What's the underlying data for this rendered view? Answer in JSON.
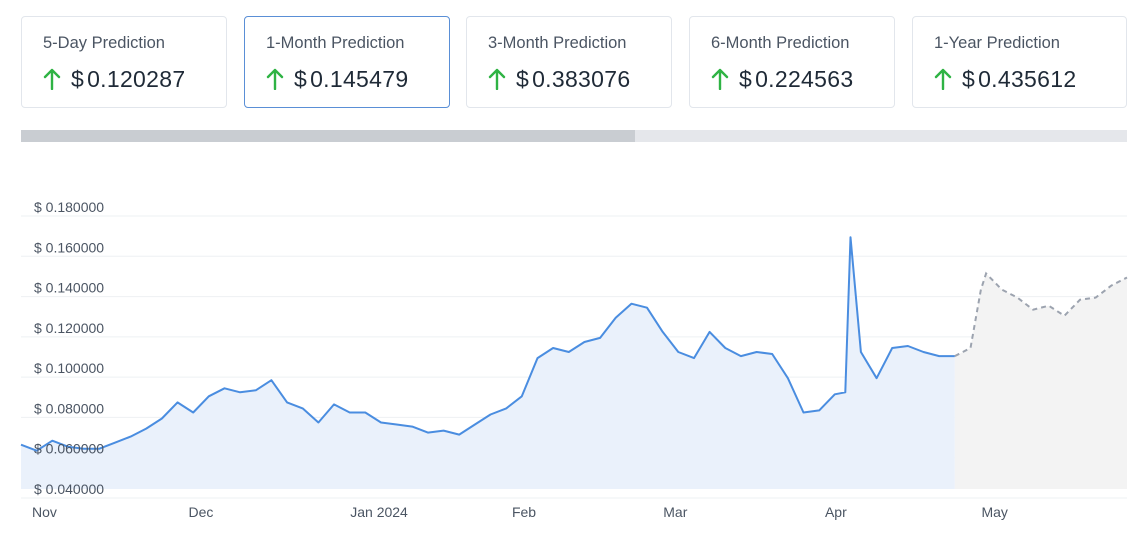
{
  "predictions": [
    {
      "label": "5-Day Prediction",
      "currency": "$",
      "value": "0.120287",
      "direction": "up-arrow-icon",
      "active": false
    },
    {
      "label": "1-Month Prediction",
      "currency": "$",
      "value": "0.145479",
      "direction": "up-arrow-icon",
      "active": true
    },
    {
      "label": "3-Month Prediction",
      "currency": "$",
      "value": "0.383076",
      "direction": "up-arrow-icon",
      "active": false
    },
    {
      "label": "6-Month Prediction",
      "currency": "$",
      "value": "0.224563",
      "direction": "up-arrow-icon",
      "active": false
    },
    {
      "label": "1-Year Prediction",
      "currency": "$",
      "value": "0.435612",
      "direction": "up-arrow-icon",
      "active": false
    }
  ],
  "colors": {
    "up_arrow": "#2fb344",
    "line": "#4a8de0",
    "area": "#eaf1fb",
    "forecast_line": "#9ca3af",
    "forecast_area": "#f3f3f3",
    "active_border": "#5a8fd6"
  },
  "chart_data": {
    "type": "line",
    "ylim": [
      0.04,
      0.18
    ],
    "ytick_labels": [
      "$ 0.180000",
      "$ 0.160000",
      "$ 0.140000",
      "$ 0.120000",
      "$ 0.100000",
      "$ 0.080000",
      "$ 0.060000",
      "$ 0.040000"
    ],
    "ytick_values": [
      0.18,
      0.16,
      0.14,
      0.12,
      0.1,
      0.08,
      0.06,
      0.04
    ],
    "xtick_labels": [
      "Nov",
      "Dec",
      "Jan 2024",
      "Feb",
      "Mar",
      "Apr",
      "May"
    ],
    "xtick_dates": [
      "2023-11-01",
      "2023-12-01",
      "2024-01-01",
      "2024-02-01",
      "2024-03-01",
      "2024-04-01",
      "2024-05-01"
    ],
    "xlim": [
      "2023-11-01",
      "2024-05-31"
    ],
    "grid": true,
    "series": [
      {
        "kind": "historical",
        "x": [
          "2023-11-01",
          "2023-11-04",
          "2023-11-07",
          "2023-11-10",
          "2023-11-13",
          "2023-11-16",
          "2023-11-19",
          "2023-11-22",
          "2023-11-25",
          "2023-11-28",
          "2023-12-01",
          "2023-12-04",
          "2023-12-07",
          "2023-12-10",
          "2023-12-13",
          "2023-12-16",
          "2023-12-19",
          "2023-12-22",
          "2023-12-25",
          "2023-12-28",
          "2023-12-31",
          "2024-01-03",
          "2024-01-06",
          "2024-01-09",
          "2024-01-12",
          "2024-01-15",
          "2024-01-18",
          "2024-01-21",
          "2024-01-24",
          "2024-01-27",
          "2024-01-30",
          "2024-02-02",
          "2024-02-05",
          "2024-02-08",
          "2024-02-11",
          "2024-02-14",
          "2024-02-17",
          "2024-02-20",
          "2024-02-23",
          "2024-02-26",
          "2024-02-29",
          "2024-03-03",
          "2024-03-06",
          "2024-03-09",
          "2024-03-12",
          "2024-03-15",
          "2024-03-18",
          "2024-03-21",
          "2024-03-24",
          "2024-03-27",
          "2024-03-30",
          "2024-04-02",
          "2024-04-05",
          "2024-04-07",
          "2024-04-08",
          "2024-04-10",
          "2024-04-13",
          "2024-04-16",
          "2024-04-19",
          "2024-04-22",
          "2024-04-25",
          "2024-04-28"
        ],
        "y": [
          0.062,
          0.059,
          0.064,
          0.061,
          0.06,
          0.06,
          0.063,
          0.066,
          0.07,
          0.075,
          0.083,
          0.078,
          0.086,
          0.09,
          0.088,
          0.089,
          0.094,
          0.083,
          0.08,
          0.073,
          0.082,
          0.078,
          0.078,
          0.073,
          0.072,
          0.071,
          0.068,
          0.069,
          0.067,
          0.072,
          0.077,
          0.08,
          0.086,
          0.105,
          0.11,
          0.108,
          0.113,
          0.115,
          0.125,
          0.132,
          0.13,
          0.118,
          0.108,
          0.105,
          0.118,
          0.11,
          0.106,
          0.108,
          0.107,
          0.095,
          0.078,
          0.079,
          0.087,
          0.088,
          0.165,
          0.108,
          0.095,
          0.11,
          0.111,
          0.108,
          0.106,
          0.106
        ]
      },
      {
        "kind": "forecast",
        "x": [
          "2024-04-28",
          "2024-05-01",
          "2024-05-03",
          "2024-05-04",
          "2024-05-07",
          "2024-05-10",
          "2024-05-13",
          "2024-05-16",
          "2024-05-19",
          "2024-05-22",
          "2024-05-25",
          "2024-05-28",
          "2024-05-31"
        ],
        "y": [
          0.106,
          0.11,
          0.139,
          0.147,
          0.139,
          0.135,
          0.129,
          0.131,
          0.126,
          0.134,
          0.135,
          0.141,
          0.145
        ]
      }
    ]
  }
}
